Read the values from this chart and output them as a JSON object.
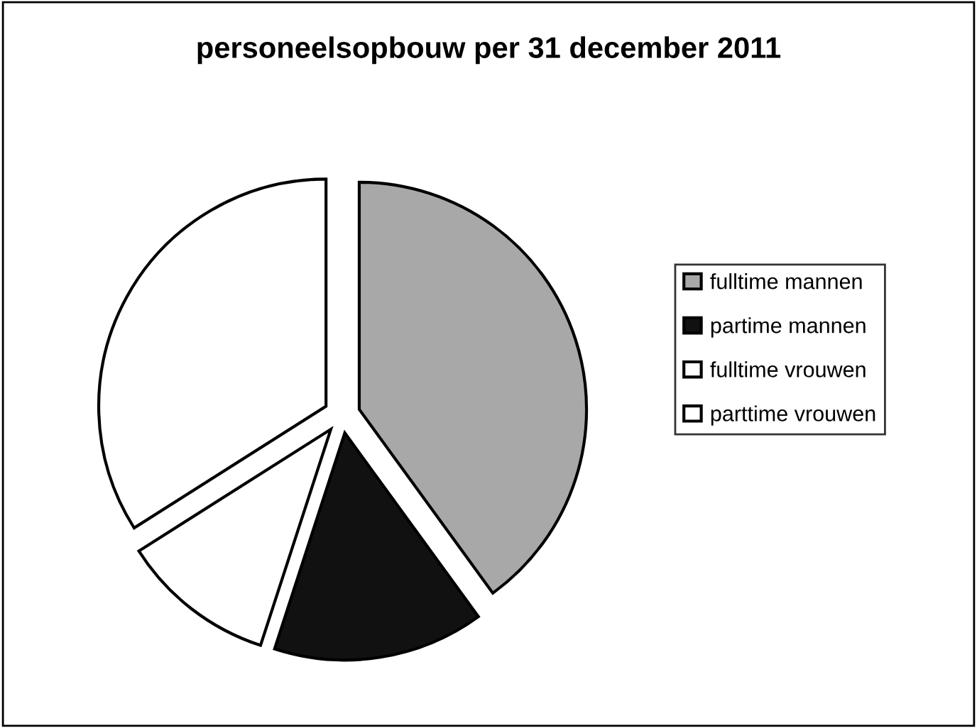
{
  "chart_data": {
    "type": "pie",
    "title": "personeelsopbouw per 31 december 2011",
    "categories": [
      "fulltime mannen",
      "partime mannen",
      "fulltime vrouwen",
      "parttime vrouwen"
    ],
    "values": [
      40,
      15,
      11,
      34
    ],
    "colors": [
      "#a8a8a8",
      "#111111",
      "#ffffff",
      "#ffffff"
    ],
    "legend": "right"
  }
}
